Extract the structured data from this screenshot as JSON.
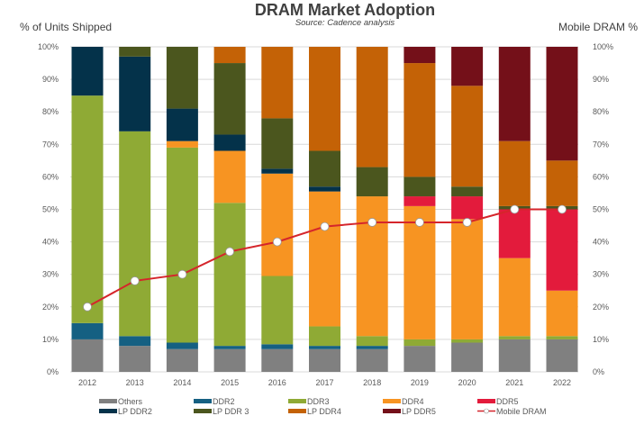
{
  "chart_data": {
    "type": "bar",
    "stacked": true,
    "title": "DRAM Market Adoption",
    "subtitle": "Source: Cadence analysis",
    "ylabel": "% of Units Shipped",
    "y2label": "Mobile DRAM %",
    "ylim": [
      0,
      100
    ],
    "y2lim": [
      0,
      100
    ],
    "yticks": [
      "0%",
      "10%",
      "20%",
      "30%",
      "40%",
      "50%",
      "60%",
      "70%",
      "80%",
      "90%",
      "100%"
    ],
    "grid": true,
    "legend_placement": "bottom",
    "categories": [
      "2012",
      "2013",
      "2014",
      "2015",
      "2016",
      "2017",
      "2018",
      "2019",
      "2020",
      "2021",
      "2022"
    ],
    "series": [
      {
        "name": "Others",
        "color": "#808080",
        "values": [
          10,
          8,
          7,
          7,
          7,
          7,
          7,
          8,
          9,
          10,
          10
        ]
      },
      {
        "name": "DDR2",
        "color": "#156082",
        "values": [
          5,
          3,
          2,
          1,
          1.5,
          1,
          1,
          0,
          0,
          0,
          0
        ]
      },
      {
        "name": "DDR3",
        "color": "#8faa35",
        "values": [
          70,
          63,
          60,
          44,
          21,
          6,
          3,
          2,
          1,
          1,
          1
        ]
      },
      {
        "name": "DDR4",
        "color": "#f79422",
        "values": [
          0,
          0,
          2,
          16,
          31.5,
          41.5,
          43,
          41,
          37,
          24,
          14
        ]
      },
      {
        "name": "DDR5",
        "color": "#e31b3c",
        "values": [
          0,
          0,
          0,
          0,
          0,
          0,
          0,
          3,
          7,
          15,
          25
        ]
      },
      {
        "name": "LP DDR2",
        "color": "#04324a",
        "values": [
          15,
          23,
          10,
          5,
          1.5,
          1.5,
          0,
          0,
          0,
          0,
          0
        ]
      },
      {
        "name": "LP DDR 3",
        "color": "#4b561e",
        "values": [
          0,
          3,
          19,
          22,
          15.5,
          11,
          9,
          6,
          3,
          1,
          1
        ]
      },
      {
        "name": "LP DDR4",
        "color": "#c46206",
        "values": [
          0,
          0,
          0,
          5,
          22,
          32,
          37,
          35,
          31,
          20,
          14
        ]
      },
      {
        "name": "LP DDR5",
        "color": "#741019",
        "values": [
          0,
          0,
          0,
          0,
          0,
          0,
          0,
          5,
          12,
          29,
          35
        ]
      }
    ],
    "line_series": {
      "name": "Mobile DRAM",
      "color": "#d5252b",
      "axis": "right",
      "values": [
        20,
        28,
        30,
        37,
        40,
        44.7,
        46,
        46,
        46,
        50,
        50
      ]
    },
    "legend_order": [
      "Others",
      "DDR2",
      "DDR3",
      "DDR4",
      "DDR5",
      "LP DDR2",
      "LP DDR 3",
      "LP DDR4",
      "LP DDR5",
      "Mobile DRAM"
    ]
  }
}
